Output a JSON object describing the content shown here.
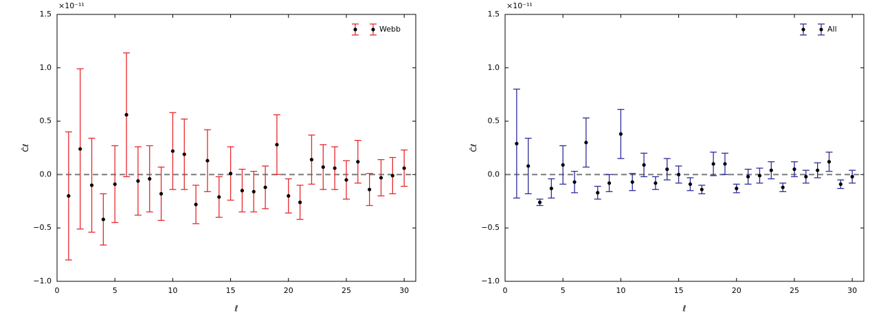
{
  "chart_data": [
    {
      "type": "errorbar",
      "xlabel": "ℓ",
      "ylabel": "Ĉℓ",
      "y_offset": "×10⁻¹¹",
      "x": [
        1,
        2,
        3,
        4,
        5,
        6,
        7,
        8,
        9,
        10,
        11,
        12,
        13,
        14,
        15,
        16,
        17,
        18,
        19,
        20,
        21,
        22,
        23,
        24,
        25,
        26,
        27,
        28,
        29,
        30
      ],
      "series": [
        {
          "name": "Webb",
          "color": "#e8262a",
          "marker_color": "#000000",
          "values": [
            -0.2,
            0.24,
            -0.1,
            -0.42,
            -0.09,
            0.56,
            -0.06,
            -0.04,
            -0.18,
            0.22,
            0.19,
            -0.28,
            0.13,
            -0.21,
            0.01,
            -0.15,
            -0.16,
            -0.12,
            0.28,
            -0.2,
            -0.26,
            0.14,
            0.07,
            0.06,
            -0.05,
            0.12,
            -0.14,
            -0.03,
            -0.01,
            0.06
          ],
          "errors": [
            0.6,
            0.75,
            0.44,
            0.24,
            0.36,
            0.58,
            0.32,
            0.31,
            0.25,
            0.36,
            0.33,
            0.18,
            0.29,
            0.19,
            0.25,
            0.2,
            0.19,
            0.2,
            0.28,
            0.16,
            0.16,
            0.23,
            0.21,
            0.2,
            0.18,
            0.2,
            0.15,
            0.17,
            0.17,
            0.17
          ]
        }
      ],
      "hline": 0,
      "xlim": [
        0,
        31
      ],
      "ylim": [
        -1.0,
        1.5
      ],
      "xticks": [
        0,
        5,
        10,
        15,
        20,
        25,
        30
      ],
      "yticks": [
        {
          "value": -1.0,
          "label": "−1.0"
        },
        {
          "value": -0.5,
          "label": "−0.5"
        },
        {
          "value": 0.0,
          "label": "0.0"
        },
        {
          "value": 0.5,
          "label": "0.5"
        },
        {
          "value": 1.0,
          "label": "1.0"
        },
        {
          "value": 1.5,
          "label": "1.5"
        }
      ],
      "legend": "upper right"
    },
    {
      "type": "errorbar",
      "xlabel": "ℓ",
      "ylabel": "Ĉℓ",
      "y_offset": "×10⁻¹¹",
      "x": [
        1,
        2,
        3,
        4,
        5,
        6,
        7,
        8,
        9,
        10,
        11,
        12,
        13,
        14,
        15,
        16,
        17,
        18,
        19,
        20,
        21,
        22,
        23,
        24,
        25,
        26,
        27,
        28,
        29,
        30
      ],
      "series": [
        {
          "name": "All",
          "color": "#2b2b9a",
          "marker_color": "#000000",
          "values": [
            0.29,
            0.08,
            -0.26,
            -0.13,
            0.09,
            -0.07,
            0.3,
            -0.17,
            -0.08,
            0.38,
            -0.07,
            0.09,
            -0.08,
            0.05,
            0.0,
            -0.09,
            -0.14,
            0.1,
            0.1,
            -0.13,
            -0.02,
            -0.01,
            0.04,
            -0.12,
            0.05,
            -0.02,
            0.04,
            0.12,
            -0.09,
            -0.02
          ],
          "errors": [
            0.51,
            0.26,
            0.03,
            0.09,
            0.18,
            0.1,
            0.23,
            0.06,
            0.08,
            0.23,
            0.08,
            0.11,
            0.06,
            0.1,
            0.08,
            0.06,
            0.04,
            0.11,
            0.1,
            0.04,
            0.07,
            0.07,
            0.08,
            0.04,
            0.07,
            0.06,
            0.07,
            0.09,
            0.04,
            0.06
          ]
        }
      ],
      "hline": 0,
      "xlim": [
        0,
        31
      ],
      "ylim": [
        -1.0,
        1.5
      ],
      "xticks": [
        0,
        5,
        10,
        15,
        20,
        25,
        30
      ],
      "yticks": [
        {
          "value": -1.0,
          "label": "−1.0"
        },
        {
          "value": -0.5,
          "label": "−0.5"
        },
        {
          "value": 0.0,
          "label": "0.0"
        },
        {
          "value": 0.5,
          "label": "0.5"
        },
        {
          "value": 1.0,
          "label": "1.0"
        },
        {
          "value": 1.5,
          "label": "1.5"
        }
      ],
      "legend": "upper right"
    }
  ]
}
